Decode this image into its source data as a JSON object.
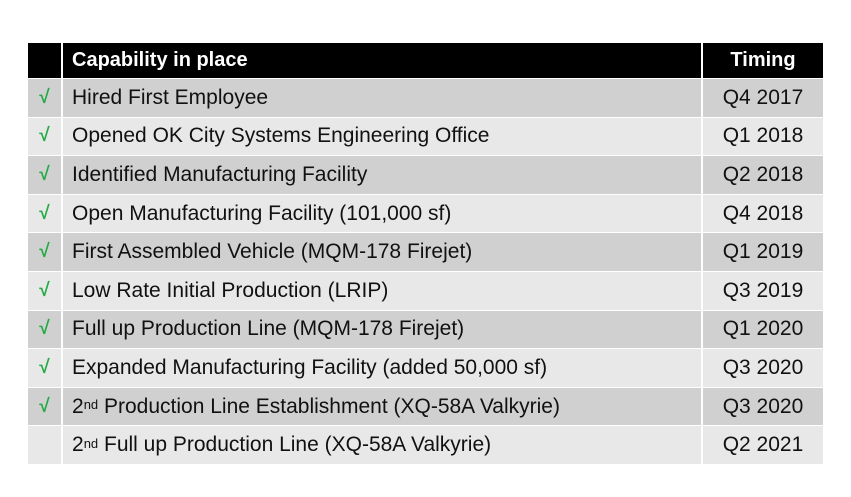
{
  "header": {
    "capability": "Capability in place",
    "timing": "Timing"
  },
  "check_mark": "√",
  "rows": [
    {
      "checked": true,
      "prefix": "Hired First Employee",
      "sup": "",
      "suffix": "",
      "timing": "Q4 2017"
    },
    {
      "checked": true,
      "prefix": "Opened OK City Systems Engineering Office",
      "sup": "",
      "suffix": "",
      "timing": "Q1 2018"
    },
    {
      "checked": true,
      "prefix": "Identified Manufacturing Facility",
      "sup": "",
      "suffix": "",
      "timing": "Q2 2018"
    },
    {
      "checked": true,
      "prefix": "Open Manufacturing Facility (101,000 sf)",
      "sup": "",
      "suffix": "",
      "timing": "Q4 2018"
    },
    {
      "checked": true,
      "prefix": "First Assembled Vehicle (MQM-178 Firejet)",
      "sup": "",
      "suffix": "",
      "timing": "Q1 2019"
    },
    {
      "checked": true,
      "prefix": "Low Rate Initial Production (LRIP)",
      "sup": "",
      "suffix": "",
      "timing": "Q3 2019"
    },
    {
      "checked": true,
      "prefix": "Full up Production Line (MQM-178 Firejet)",
      "sup": "",
      "suffix": "",
      "timing": "Q1 2020"
    },
    {
      "checked": true,
      "prefix": "Expanded Manufacturing Facility (added 50,000 sf)",
      "sup": "",
      "suffix": "",
      "timing": "Q3 2020"
    },
    {
      "checked": true,
      "prefix": "2",
      "sup": "nd",
      "suffix": " Production Line Establishment (XQ-58A Valkyrie)",
      "timing": "Q3 2020"
    },
    {
      "checked": false,
      "prefix": "2",
      "sup": "nd",
      "suffix": " Full up Production Line (XQ-58A Valkyrie)",
      "timing": "Q2 2021"
    }
  ],
  "colors": {
    "header_bg": "#000000",
    "row_dark": "#d0d0d0",
    "row_light": "#e8e8e8",
    "check": "#22aa44"
  }
}
